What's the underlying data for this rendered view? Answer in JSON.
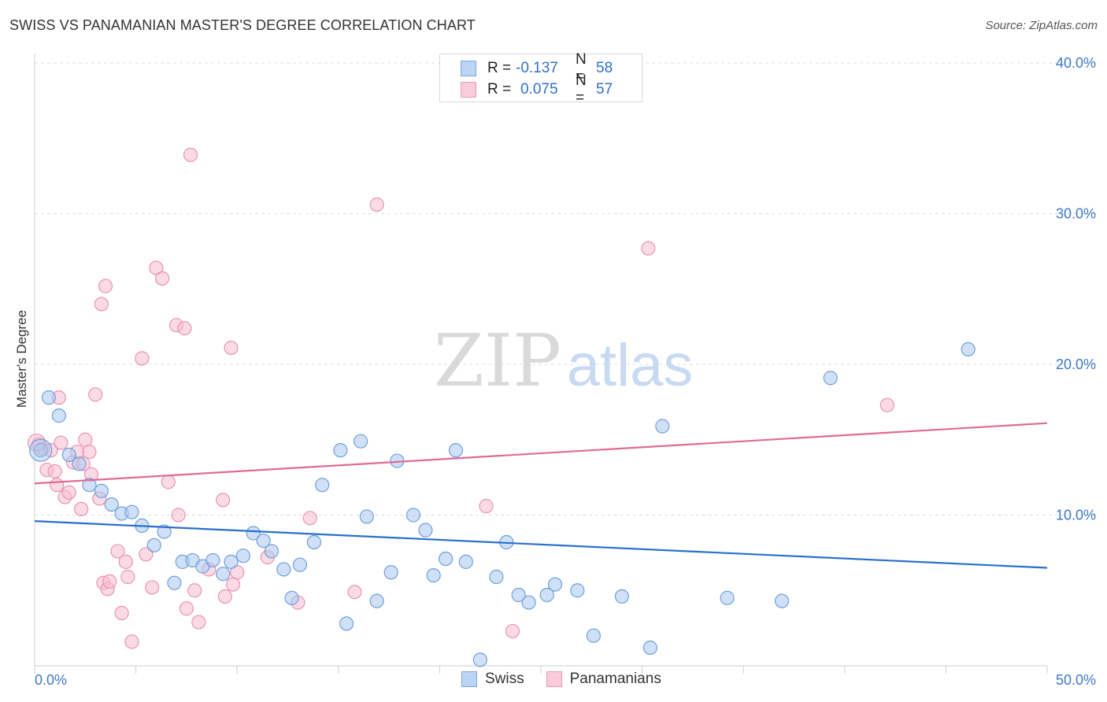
{
  "header": {
    "title": "SWISS VS PANAMANIAN MASTER'S DEGREE CORRELATION CHART",
    "source": "Source: ZipAtlas.com"
  },
  "watermark": {
    "zip": "ZIP",
    "atlas": "atlas"
  },
  "legend": {
    "rows": [
      {
        "r_label": "R =",
        "r_value": "-0.137",
        "n_label": "N =",
        "n_value": "58"
      },
      {
        "r_label": "R =",
        "r_value": "0.075",
        "n_label": "N =",
        "n_value": "57"
      }
    ],
    "bottom": [
      "Swiss",
      "Panamanians"
    ]
  },
  "colors": {
    "swiss_fill": "#a9c8f0",
    "swiss_stroke": "#6f9fdc",
    "swiss_line": "#2a6fcc",
    "pan_fill": "#f6bdd0",
    "pan_stroke": "#ea93b0",
    "pan_line": "#e06b94",
    "axis_label": "#3c78c8",
    "grid": "#dedede"
  },
  "chart_data": {
    "type": "scatter",
    "title": "SWISS VS PANAMANIAN MASTER'S DEGREE CORRELATION CHART",
    "xlabel": "",
    "ylabel": "Master's Degree",
    "xlim": [
      0,
      50
    ],
    "ylim": [
      0,
      40
    ],
    "x_tick_labels": [
      {
        "value": 0,
        "label": "0.0%"
      },
      {
        "value": 50,
        "label": "50.0%"
      }
    ],
    "y_tick_labels": [
      {
        "value": 10,
        "label": "10.0%"
      },
      {
        "value": 20,
        "label": "20.0%"
      },
      {
        "value": 30,
        "label": "30.0%"
      },
      {
        "value": 40,
        "label": "40.0%"
      }
    ],
    "series": [
      {
        "name": "Swiss",
        "r": -0.137,
        "n": 58,
        "trend": {
          "x": [
            0,
            50
          ],
          "y": [
            9.6,
            6.5
          ]
        },
        "points": [
          [
            0.3,
            14.3
          ],
          [
            0.7,
            17.8
          ],
          [
            1.2,
            16.6
          ],
          [
            1.7,
            14.0
          ],
          [
            2.2,
            13.4
          ],
          [
            2.7,
            12.0
          ],
          [
            3.3,
            11.6
          ],
          [
            3.8,
            10.7
          ],
          [
            4.3,
            10.1
          ],
          [
            4.8,
            10.2
          ],
          [
            5.3,
            9.3
          ],
          [
            5.9,
            8.0
          ],
          [
            6.4,
            8.9
          ],
          [
            6.9,
            5.5
          ],
          [
            7.3,
            6.9
          ],
          [
            7.8,
            7.0
          ],
          [
            8.3,
            6.6
          ],
          [
            8.8,
            7.0
          ],
          [
            9.3,
            6.1
          ],
          [
            9.7,
            6.9
          ],
          [
            10.3,
            7.3
          ],
          [
            10.8,
            8.8
          ],
          [
            11.3,
            8.3
          ],
          [
            11.7,
            7.6
          ],
          [
            12.3,
            6.4
          ],
          [
            12.7,
            4.5
          ],
          [
            13.1,
            6.7
          ],
          [
            13.8,
            8.2
          ],
          [
            14.2,
            12.0
          ],
          [
            15.1,
            14.3
          ],
          [
            15.4,
            2.8
          ],
          [
            16.1,
            14.9
          ],
          [
            16.4,
            9.9
          ],
          [
            16.9,
            4.3
          ],
          [
            17.6,
            6.2
          ],
          [
            17.9,
            13.6
          ],
          [
            18.7,
            10.0
          ],
          [
            19.3,
            9.0
          ],
          [
            19.7,
            6.0
          ],
          [
            20.3,
            7.1
          ],
          [
            20.8,
            14.3
          ],
          [
            21.3,
            6.9
          ],
          [
            22.0,
            0.4
          ],
          [
            22.8,
            5.9
          ],
          [
            23.3,
            8.2
          ],
          [
            23.9,
            4.7
          ],
          [
            24.4,
            4.2
          ],
          [
            25.3,
            4.7
          ],
          [
            25.7,
            5.4
          ],
          [
            26.8,
            5.0
          ],
          [
            27.6,
            2.0
          ],
          [
            29.0,
            4.6
          ],
          [
            30.4,
            1.2
          ],
          [
            31.0,
            15.9
          ],
          [
            34.2,
            4.5
          ],
          [
            36.9,
            4.3
          ],
          [
            39.3,
            19.1
          ],
          [
            46.1,
            21.0
          ]
        ]
      },
      {
        "name": "Panamanians",
        "r": 0.075,
        "n": 57,
        "trend": {
          "x": [
            0,
            50
          ],
          "y": [
            12.1,
            16.1
          ]
        },
        "points": [
          [
            0.2,
            14.7
          ],
          [
            0.4,
            14.4
          ],
          [
            0.6,
            13.0
          ],
          [
            0.8,
            14.3
          ],
          [
            1.0,
            12.9
          ],
          [
            1.1,
            12.0
          ],
          [
            1.2,
            17.8
          ],
          [
            1.3,
            14.8
          ],
          [
            1.5,
            11.2
          ],
          [
            1.7,
            11.5
          ],
          [
            1.9,
            13.5
          ],
          [
            2.1,
            14.2
          ],
          [
            2.3,
            10.4
          ],
          [
            2.4,
            13.4
          ],
          [
            2.5,
            15.0
          ],
          [
            2.7,
            14.2
          ],
          [
            2.8,
            12.7
          ],
          [
            3.0,
            18.0
          ],
          [
            3.2,
            11.1
          ],
          [
            3.3,
            24.0
          ],
          [
            3.4,
            5.5
          ],
          [
            3.5,
            25.2
          ],
          [
            3.6,
            5.1
          ],
          [
            3.7,
            5.6
          ],
          [
            4.1,
            7.6
          ],
          [
            4.3,
            3.5
          ],
          [
            4.5,
            6.9
          ],
          [
            4.6,
            5.9
          ],
          [
            4.8,
            1.6
          ],
          [
            5.3,
            20.4
          ],
          [
            5.5,
            7.4
          ],
          [
            5.8,
            5.2
          ],
          [
            6.0,
            26.4
          ],
          [
            6.3,
            25.7
          ],
          [
            6.6,
            12.2
          ],
          [
            7.0,
            22.6
          ],
          [
            7.1,
            10.0
          ],
          [
            7.4,
            22.4
          ],
          [
            7.5,
            3.8
          ],
          [
            7.7,
            33.9
          ],
          [
            7.9,
            5.0
          ],
          [
            8.1,
            2.9
          ],
          [
            8.6,
            6.4
          ],
          [
            9.3,
            11.0
          ],
          [
            9.4,
            4.6
          ],
          [
            9.7,
            21.1
          ],
          [
            9.8,
            5.4
          ],
          [
            10.0,
            6.2
          ],
          [
            11.5,
            7.2
          ],
          [
            13.0,
            4.2
          ],
          [
            13.6,
            9.8
          ],
          [
            15.8,
            4.9
          ],
          [
            16.9,
            30.6
          ],
          [
            22.3,
            10.6
          ],
          [
            23.6,
            2.3
          ],
          [
            30.3,
            27.7
          ],
          [
            42.1,
            17.3
          ]
        ]
      }
    ]
  }
}
